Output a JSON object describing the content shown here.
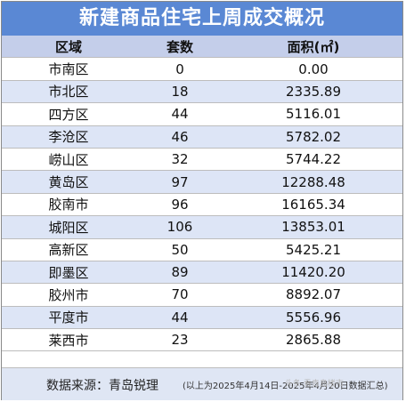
{
  "title": "新建商品住宅上周成交概况",
  "headers": {
    "region": "区域",
    "units": "套数",
    "area": "面积(㎡)"
  },
  "rows": [
    {
      "region": "市南区",
      "units": "0",
      "area": "0.00"
    },
    {
      "region": "市北区",
      "units": "18",
      "area": "2335.89"
    },
    {
      "region": "四方区",
      "units": "44",
      "area": "5116.01"
    },
    {
      "region": "李沧区",
      "units": "46",
      "area": "5782.02"
    },
    {
      "region": "崂山区",
      "units": "32",
      "area": "5744.22"
    },
    {
      "region": "黄岛区",
      "units": "97",
      "area": "12288.48"
    },
    {
      "region": "胶南市",
      "units": "96",
      "area": "16165.34"
    },
    {
      "region": "城阳区",
      "units": "106",
      "area": "13853.01"
    },
    {
      "region": "高新区",
      "units": "50",
      "area": "5425.21"
    },
    {
      "region": "即墨区",
      "units": "89",
      "area": "11420.20"
    },
    {
      "region": "胶州市",
      "units": "70",
      "area": "8892.07"
    },
    {
      "region": "平度市",
      "units": "44",
      "area": "5556.96"
    },
    {
      "region": "莱西市",
      "units": "23",
      "area": "2865.88"
    }
  ],
  "footer": {
    "source": "数据来源：青岛锐理",
    "note": "(以上为2025年4月14日-2025年4月20日数据汇总)",
    "watermark": "头条 看青岛楼市"
  }
}
